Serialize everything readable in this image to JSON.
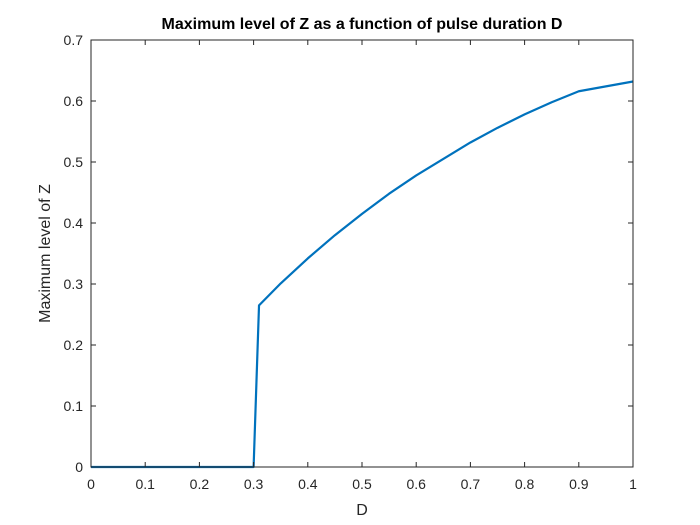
{
  "chart_data": {
    "type": "line",
    "title": "Maximum level of Z as a function of pulse duration D",
    "xlabel": "D",
    "ylabel": "Maximum level of Z",
    "xlim": [
      0,
      1
    ],
    "ylim": [
      0,
      0.7
    ],
    "xticks": [
      "0",
      "0.1",
      "0.2",
      "0.3",
      "0.4",
      "0.5",
      "0.6",
      "0.7",
      "0.8",
      "0.9",
      "1"
    ],
    "yticks": [
      "0",
      "0.1",
      "0.2",
      "0.3",
      "0.4",
      "0.5",
      "0.6",
      "0.7"
    ],
    "grid": false,
    "box": true,
    "series": [
      {
        "color": "#0072BD",
        "x": [
          0,
          0.1,
          0.2,
          0.3,
          0.31,
          0.35,
          0.4,
          0.45,
          0.5,
          0.55,
          0.6,
          0.65,
          0.7,
          0.75,
          0.8,
          0.85,
          0.9,
          0.95,
          1.0
        ],
        "y": [
          0,
          0,
          0,
          0,
          0.265,
          0.301,
          0.342,
          0.38,
          0.415,
          0.448,
          0.478,
          0.505,
          0.532,
          0.556,
          0.578,
          0.598,
          0.616,
          0.624,
          0.632
        ]
      }
    ]
  }
}
